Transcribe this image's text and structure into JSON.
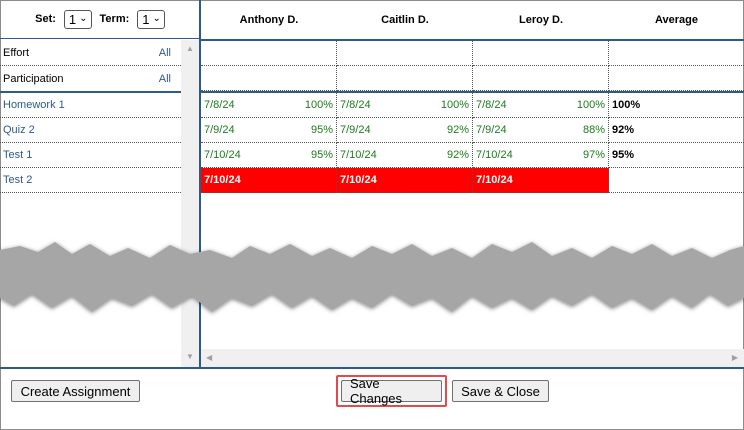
{
  "selectors": {
    "set_label": "Set:",
    "set_value": "1",
    "term_label": "Term:",
    "term_value": "1"
  },
  "columns": [
    "Anthony D.",
    "Caitlin D.",
    "Leroy D.",
    "Average"
  ],
  "categories": [
    {
      "label": "Effort",
      "action": "All"
    },
    {
      "label": "Participation",
      "action": "All"
    }
  ],
  "assignments": [
    {
      "label": "Homework 1"
    },
    {
      "label": "Quiz 2"
    },
    {
      "label": "Test 1"
    },
    {
      "label": "Test 2"
    }
  ],
  "grid": [
    {
      "cells": [
        {
          "date": "7/8/24",
          "pct": "100%"
        },
        {
          "date": "7/8/24",
          "pct": "100%"
        },
        {
          "date": "7/8/24",
          "pct": "100%"
        }
      ],
      "average": "100%"
    },
    {
      "cells": [
        {
          "date": "7/9/24",
          "pct": "95%"
        },
        {
          "date": "7/9/24",
          "pct": "92%"
        },
        {
          "date": "7/9/24",
          "pct": "88%"
        }
      ],
      "average": "92%"
    },
    {
      "cells": [
        {
          "date": "7/10/24",
          "pct": "95%"
        },
        {
          "date": "7/10/24",
          "pct": "92%"
        },
        {
          "date": "7/10/24",
          "pct": "97%"
        }
      ],
      "average": "95%"
    },
    {
      "cells": [
        {
          "date": "7/10/24",
          "pct": ""
        },
        {
          "date": "7/10/24",
          "pct": ""
        },
        {
          "date": "7/10/24",
          "pct": ""
        }
      ],
      "average": ""
    }
  ],
  "buttons": {
    "create": "Create Assignment",
    "save": "Save Changes",
    "save_close": "Save & Close"
  },
  "colors": {
    "accent": "#2e5a8a",
    "grade_green": "#1e7a1e",
    "missing_red": "#ff0000",
    "highlight": "#e24b4b"
  }
}
